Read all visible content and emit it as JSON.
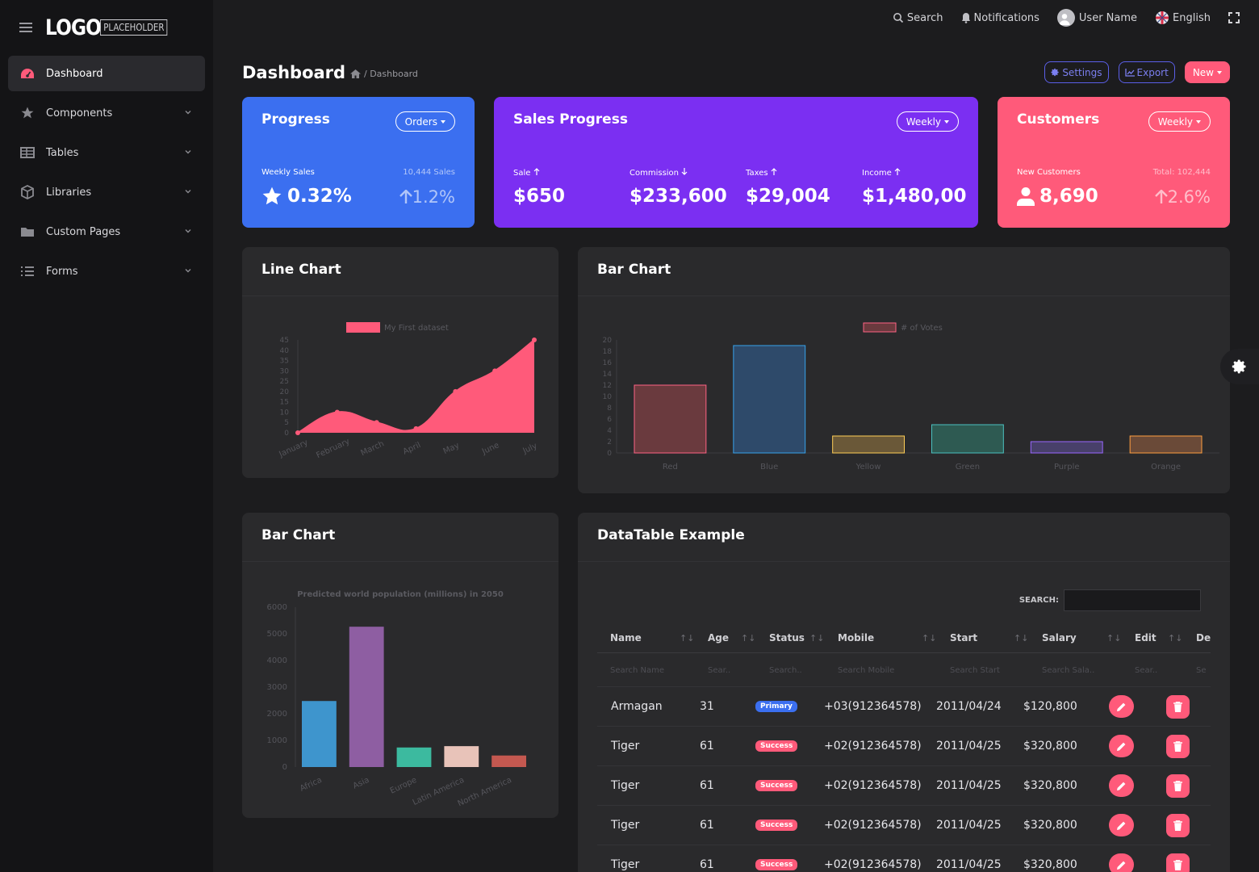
{
  "brand": {
    "logo": "LOGO",
    "logo_sub": "PLACEHOLDER"
  },
  "sidebar": {
    "items": [
      {
        "label": "Dashboard",
        "icon": "speedometer-icon",
        "active": true
      },
      {
        "label": "Components",
        "icon": "star-icon"
      },
      {
        "label": "Tables",
        "icon": "table-icon"
      },
      {
        "label": "Libraries",
        "icon": "cube-icon"
      },
      {
        "label": "Custom Pages",
        "icon": "folder-icon"
      },
      {
        "label": "Forms",
        "icon": "list-icon"
      }
    ]
  },
  "topbar": {
    "search": "Search",
    "notifications": "Notifications",
    "user": "User Name",
    "language": "English"
  },
  "page": {
    "title": "Dashboard",
    "breadcrumb": "/ Dashboard"
  },
  "header_buttons": {
    "settings": "Settings",
    "export": "Export",
    "new": "New"
  },
  "cards": {
    "progress": {
      "title": "Progress",
      "dropdown": "Orders",
      "label": "Weekly Sales",
      "label_right": "10,444 Sales",
      "value": "0.32%",
      "value_right": "1.2%",
      "color": "#3b6ff0"
    },
    "sales": {
      "title": "Sales Progress",
      "dropdown": "Weekly",
      "color": "#7b2ff2",
      "metrics": [
        {
          "label": "Sale",
          "value": "$650",
          "dir": "up"
        },
        {
          "label": "Commission",
          "value": "$233,600",
          "dir": "down"
        },
        {
          "label": "Taxes",
          "value": "$29,004",
          "dir": "up"
        },
        {
          "label": "Income",
          "value": "$1,480,00",
          "dir": "up"
        }
      ]
    },
    "customers": {
      "title": "Customers",
      "dropdown": "Weekly",
      "label": "New Customers",
      "label_right": "Total: 102,444",
      "value": "8,690",
      "value_right": "2.6%",
      "color": "#ff5a7a"
    }
  },
  "panels": {
    "line": "Line Chart",
    "bar1": "Bar Chart",
    "bar2": "Bar Chart",
    "table": "DataTable Example"
  },
  "chart_data": [
    {
      "type": "area",
      "legend": "My First dataset",
      "color": "#ff5a7a",
      "categories": [
        "January",
        "February",
        "March",
        "April",
        "May",
        "June",
        "July"
      ],
      "values": [
        0,
        10,
        5,
        2,
        20,
        30,
        45
      ],
      "ylim": [
        0,
        45
      ],
      "yticks": [
        0,
        5,
        10,
        15,
        20,
        25,
        30,
        35,
        40,
        45
      ],
      "legend_position": "top-center"
    },
    {
      "type": "bar",
      "legend": "# of Votes",
      "categories": [
        "Red",
        "Blue",
        "Yellow",
        "Green",
        "Purple",
        "Orange"
      ],
      "values": [
        12,
        19,
        3,
        5,
        2,
        3
      ],
      "ylim": [
        0,
        20
      ],
      "yticks": [
        0,
        2,
        4,
        6,
        8,
        10,
        12,
        14,
        16,
        18,
        20
      ],
      "fills": [
        "#6a3a3e",
        "#2e4a6a",
        "#6a5838",
        "#2e5a52",
        "#48406a",
        "#6a4a38"
      ],
      "strokes": [
        "#ff6384",
        "#36a2eb",
        "#ffce56",
        "#4bc0c0",
        "#9966ff",
        "#ff9f40"
      ],
      "legend_position": "top-center"
    },
    {
      "type": "bar",
      "title": "Predicted world population (millions) in 2050",
      "categories": [
        "Africa",
        "Asia",
        "Europe",
        "Latin America",
        "North America"
      ],
      "values": [
        2478,
        5267,
        734,
        784,
        433
      ],
      "ylim": [
        0,
        6000
      ],
      "yticks": [
        0,
        1000,
        2000,
        3000,
        4000,
        5000,
        6000
      ],
      "colors": [
        "#3e95cd",
        "#8e5ea2",
        "#3cba9f",
        "#e8c3b9",
        "#c45850"
      ]
    }
  ],
  "table": {
    "search_label": "SEARCH:",
    "columns": [
      "Name",
      "Age",
      "Status",
      "Mobile",
      "Start",
      "Salary",
      "Edit",
      "De"
    ],
    "filters": [
      "Search Name",
      "Sear..",
      "Search..",
      "Search Mobile",
      "Search Start",
      "Search Sala..",
      "Sear..",
      "Se"
    ],
    "rows": [
      {
        "name": "Armagan",
        "age": "31",
        "status": "Primary",
        "status_color": "#3b6ff0",
        "mobile": "+03(912364578)",
        "start": "2011/04/24",
        "salary": "$120,800"
      },
      {
        "name": "Tiger",
        "age": "61",
        "status": "Success",
        "status_color": "#ff5a7a",
        "mobile": "+02(912364578)",
        "start": "2011/04/25",
        "salary": "$320,800"
      },
      {
        "name": "Tiger",
        "age": "61",
        "status": "Success",
        "status_color": "#ff5a7a",
        "mobile": "+02(912364578)",
        "start": "2011/04/25",
        "salary": "$320,800"
      },
      {
        "name": "Tiger",
        "age": "61",
        "status": "Success",
        "status_color": "#ff5a7a",
        "mobile": "+02(912364578)",
        "start": "2011/04/25",
        "salary": "$320,800"
      },
      {
        "name": "Tiger",
        "age": "61",
        "status": "Success",
        "status_color": "#ff5a7a",
        "mobile": "+02(912364578)",
        "start": "2011/04/25",
        "salary": "$320,800"
      }
    ]
  }
}
